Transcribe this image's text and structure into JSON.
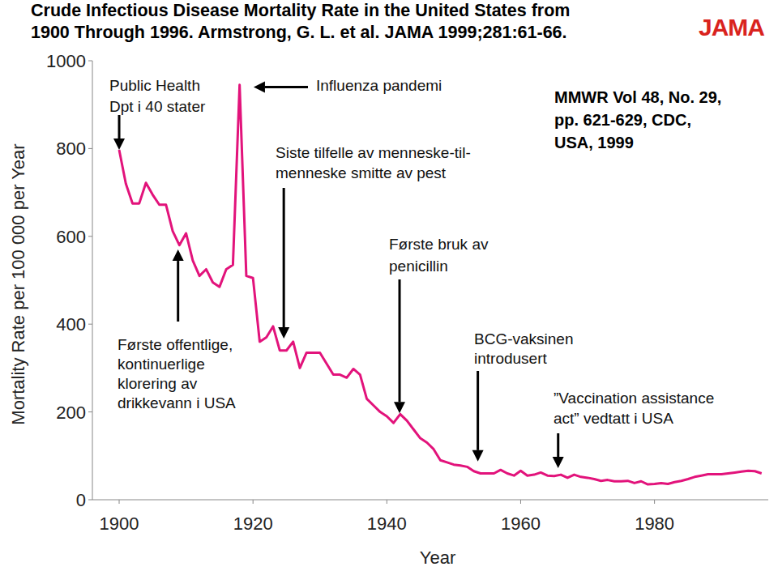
{
  "chart_data": {
    "type": "line",
    "title": [
      "Crude Infectious Disease Mortality Rate in the United States from",
      "1900 Through 1996. Armstrong, G. L. et al. JAMA 1999;281:61-66."
    ],
    "logo": "JAMA",
    "source": [
      "MMWR Vol 48, No. 29,",
      "pp. 621-629, CDC,",
      "USA, 1999"
    ],
    "x_label": "Year",
    "y_label": "Mortality Rate per 100 000 per Year",
    "color": "#e2137b",
    "grid": false,
    "xlim": [
      1896,
      1997
    ],
    "ylim": [
      0,
      1000
    ],
    "xticks": [
      1900,
      1920,
      1940,
      1960,
      1980
    ],
    "yticks": [
      0,
      200,
      400,
      600,
      800,
      1000
    ],
    "x": [
      1900,
      1901,
      1902,
      1903,
      1904,
      1905,
      1906,
      1907,
      1908,
      1909,
      1910,
      1911,
      1912,
      1913,
      1914,
      1915,
      1916,
      1917,
      1918,
      1919,
      1920,
      1921,
      1922,
      1923,
      1924,
      1925,
      1926,
      1927,
      1928,
      1929,
      1930,
      1931,
      1932,
      1933,
      1934,
      1935,
      1936,
      1937,
      1938,
      1939,
      1940,
      1941,
      1942,
      1943,
      1944,
      1945,
      1946,
      1947,
      1948,
      1949,
      1950,
      1951,
      1952,
      1953,
      1954,
      1955,
      1956,
      1957,
      1958,
      1959,
      1960,
      1961,
      1962,
      1963,
      1964,
      1965,
      1966,
      1967,
      1968,
      1969,
      1970,
      1971,
      1972,
      1973,
      1974,
      1975,
      1976,
      1977,
      1978,
      1979,
      1980,
      1981,
      1982,
      1983,
      1984,
      1985,
      1986,
      1987,
      1988,
      1989,
      1990,
      1991,
      1992,
      1993,
      1994,
      1995,
      1996
    ],
    "values": [
      797,
      720,
      675,
      675,
      722,
      695,
      672,
      672,
      612,
      580,
      607,
      545,
      510,
      525,
      495,
      485,
      525,
      535,
      945,
      510,
      505,
      360,
      370,
      395,
      340,
      340,
      360,
      300,
      335,
      335,
      335,
      310,
      285,
      285,
      278,
      298,
      285,
      230,
      215,
      200,
      190,
      175,
      195,
      180,
      160,
      140,
      130,
      115,
      90,
      85,
      80,
      78,
      75,
      65,
      60,
      60,
      60,
      68,
      60,
      55,
      66,
      55,
      57,
      62,
      55,
      54,
      57,
      50,
      57,
      52,
      50,
      47,
      43,
      45,
      42,
      42,
      43,
      38,
      42,
      35,
      36,
      38,
      36,
      40,
      43,
      47,
      52,
      55,
      58,
      58,
      58,
      60,
      62,
      64,
      66,
      65,
      60
    ],
    "annotations": [
      {
        "text": [
          "Public Health",
          "Dpt i 40 stater"
        ],
        "x": 1900,
        "y": 797
      },
      {
        "text": [
          "Influenza pandemi"
        ],
        "x": 1919,
        "y": 940
      },
      {
        "text": [
          "Siste tilfelle av menneske-til-",
          "menneske smitte av pest"
        ],
        "x": 1924.6,
        "y": 367
      },
      {
        "text": [
          "Første offentlige,",
          "kontinuerlige",
          "klorering av",
          "drikkevann i USA"
        ],
        "x": 1908.8,
        "y": 570
      },
      {
        "text": [
          "Første bruk av",
          "penicillin"
        ],
        "x": 1941.9,
        "y": 197
      },
      {
        "text": [
          "BCG-vaksinen",
          "introdusert"
        ],
        "x": 1953.6,
        "y": 87
      },
      {
        "text": [
          "”Vaccination assistance",
          "act” vedtatt i USA"
        ],
        "x": 1965.6,
        "y": 72
      }
    ]
  }
}
